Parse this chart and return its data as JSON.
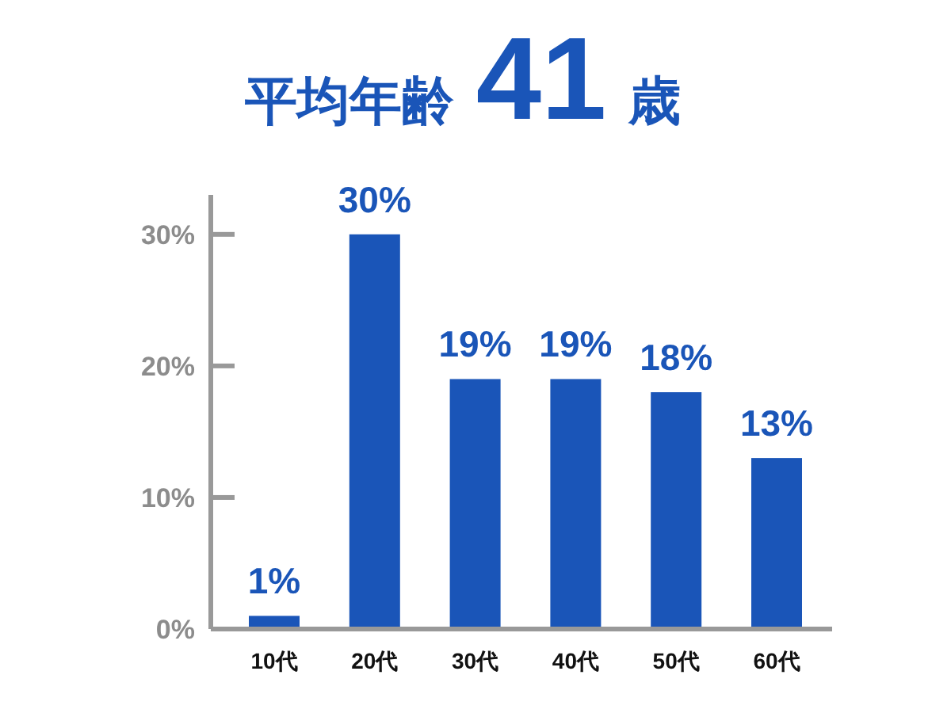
{
  "chart_data": {
    "type": "bar",
    "title": "平均年齢 41 歳",
    "categories": [
      "10代",
      "20代",
      "30代",
      "40代",
      "50代",
      "60代"
    ],
    "values": [
      1,
      30,
      19,
      19,
      18,
      13
    ],
    "color": "#1a55b8",
    "value_labels": [
      "1%",
      "30%",
      "19%",
      "19%",
      "18%",
      "13%"
    ],
    "ylim": [
      0,
      33
    ],
    "yticks": [
      {
        "value": 0,
        "label": "0%"
      },
      {
        "value": 10,
        "label": "10%"
      },
      {
        "value": 20,
        "label": "20%"
      },
      {
        "value": 30,
        "label": "30%"
      }
    ]
  }
}
